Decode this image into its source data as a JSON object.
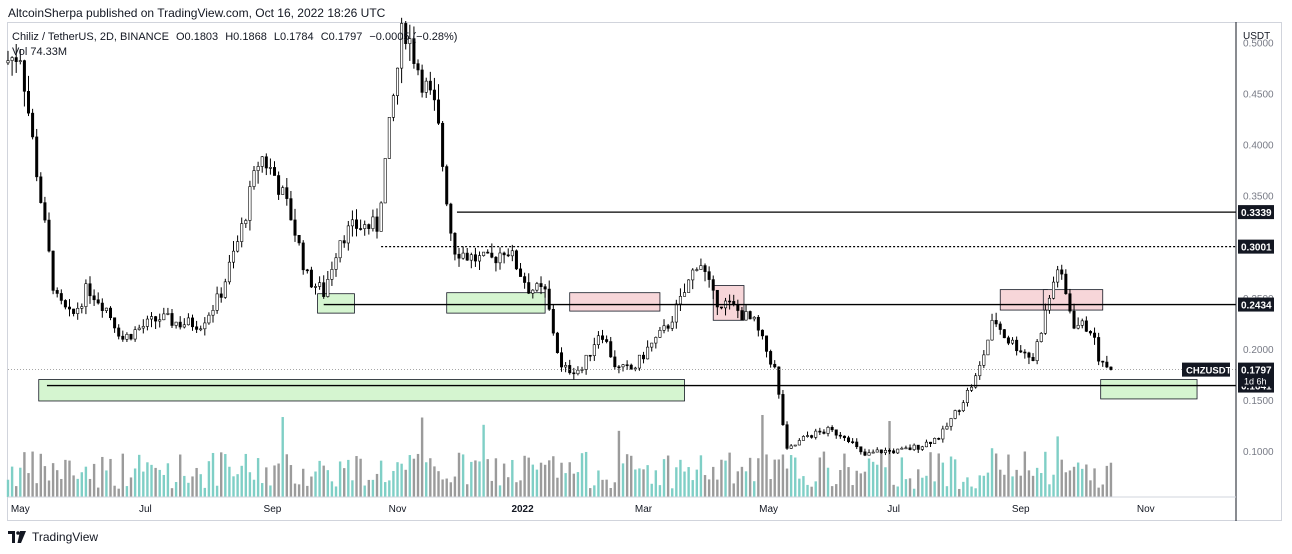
{
  "publisher_line": "AltcoinSherpa published on TradingView.com, Oct 16, 2022 18:26 UTC",
  "legend": {
    "symbol": "Chiliz / TetherUS, 2D, BINANCE",
    "open": "O0.1803",
    "high": "H0.1868",
    "low": "L0.1784",
    "close": "C0.1797",
    "change": "−0.0005 (−0.28%)",
    "volume": "Vol 74.33M"
  },
  "footer": {
    "brand": "TradingView"
  },
  "colors": {
    "up_candle": "#ffffff",
    "down_candle": "#000000",
    "candle_outline": "#000000",
    "volume_up": "#7fcfc6",
    "volume_down": "#9b9b9b",
    "support_zone": "#d5f5d0",
    "resistance_zone": "#f7d6d9",
    "level_line": "#000000",
    "price_tag_bg": "#131722"
  },
  "chart_data": {
    "type": "candlestick",
    "title": "",
    "currency": "USDT",
    "y_scale": "linear",
    "ylim": [
      0.055,
      0.52
    ],
    "y_ticks": [
      {
        "value": 0.5,
        "label": "0.5000"
      },
      {
        "value": 0.45,
        "label": "0.4500"
      },
      {
        "value": 0.4,
        "label": "0.4000"
      },
      {
        "value": 0.35,
        "label": "0.3500"
      },
      {
        "value": 0.3,
        "label": "0.3000"
      },
      {
        "value": 0.25,
        "label": "0.2500"
      },
      {
        "value": 0.2,
        "label": "0.2000"
      },
      {
        "value": 0.15,
        "label": "0.1500"
      },
      {
        "value": 0.1,
        "label": "0.1000"
      }
    ],
    "x_start": "2021-04-25",
    "x_end": "2022-12-15",
    "x_ticks": [
      {
        "date": "2021-05-01",
        "label": "May"
      },
      {
        "date": "2021-07-01",
        "label": "Jul"
      },
      {
        "date": "2021-09-01",
        "label": "Sep"
      },
      {
        "date": "2021-11-01",
        "label": "Nov"
      },
      {
        "date": "2022-01-01",
        "label": "2022"
      },
      {
        "date": "2022-03-01",
        "label": "Mar"
      },
      {
        "date": "2022-05-01",
        "label": "May"
      },
      {
        "date": "2022-07-01",
        "label": "Jul"
      },
      {
        "date": "2022-09-01",
        "label": "Sep"
      },
      {
        "date": "2022-11-01",
        "label": "Nov"
      }
    ],
    "price_path": [
      [
        "2021-04-25",
        0.48
      ],
      [
        "2021-05-03",
        0.49
      ],
      [
        "2021-05-12",
        0.36
      ],
      [
        "2021-05-20",
        0.25
      ],
      [
        "2021-05-28",
        0.23
      ],
      [
        "2021-06-05",
        0.26
      ],
      [
        "2021-06-14",
        0.24
      ],
      [
        "2021-06-22",
        0.21
      ],
      [
        "2021-06-30",
        0.22
      ],
      [
        "2021-07-10",
        0.23
      ],
      [
        "2021-07-20",
        0.225
      ],
      [
        "2021-07-30",
        0.225
      ],
      [
        "2021-08-08",
        0.25
      ],
      [
        "2021-08-18",
        0.31
      ],
      [
        "2021-08-28",
        0.39
      ],
      [
        "2021-09-04",
        0.37
      ],
      [
        "2021-09-12",
        0.33
      ],
      [
        "2021-09-20",
        0.27
      ],
      [
        "2021-09-28",
        0.255
      ],
      [
        "2021-10-06",
        0.31
      ],
      [
        "2021-10-14",
        0.32
      ],
      [
        "2021-10-24",
        0.32
      ],
      [
        "2021-10-31",
        0.43
      ],
      [
        "2021-11-06",
        0.52
      ],
      [
        "2021-11-14",
        0.47
      ],
      [
        "2021-11-22",
        0.43
      ],
      [
        "2021-11-30",
        0.3
      ],
      [
        "2021-12-08",
        0.29
      ],
      [
        "2021-12-18",
        0.285
      ],
      [
        "2021-12-26",
        0.3
      ],
      [
        "2022-01-06",
        0.26
      ],
      [
        "2022-01-14",
        0.255
      ],
      [
        "2022-01-22",
        0.18
      ],
      [
        "2022-02-01",
        0.18
      ],
      [
        "2022-02-10",
        0.22
      ],
      [
        "2022-02-18",
        0.18
      ],
      [
        "2022-02-26",
        0.18
      ],
      [
        "2022-03-05",
        0.2
      ],
      [
        "2022-03-14",
        0.22
      ],
      [
        "2022-03-22",
        0.25
      ],
      [
        "2022-03-30",
        0.29
      ],
      [
        "2022-04-06",
        0.25
      ],
      [
        "2022-04-16",
        0.24
      ],
      [
        "2022-04-26",
        0.225
      ],
      [
        "2022-05-06",
        0.18
      ],
      [
        "2022-05-12",
        0.1
      ],
      [
        "2022-05-22",
        0.115
      ],
      [
        "2022-06-01",
        0.12
      ],
      [
        "2022-06-10",
        0.115
      ],
      [
        "2022-06-18",
        0.095
      ],
      [
        "2022-06-26",
        0.1
      ],
      [
        "2022-07-06",
        0.1
      ],
      [
        "2022-07-16",
        0.105
      ],
      [
        "2022-07-26",
        0.115
      ],
      [
        "2022-08-03",
        0.14
      ],
      [
        "2022-08-13",
        0.175
      ],
      [
        "2022-08-21",
        0.23
      ],
      [
        "2022-08-27",
        0.21
      ],
      [
        "2022-09-03",
        0.2
      ],
      [
        "2022-09-09",
        0.19
      ],
      [
        "2022-09-15",
        0.235
      ],
      [
        "2022-09-21",
        0.28
      ],
      [
        "2022-09-29",
        0.225
      ],
      [
        "2022-10-07",
        0.22
      ],
      [
        "2022-10-12",
        0.185
      ],
      [
        "2022-10-16",
        0.1797
      ]
    ],
    "horizontal_levels": [
      {
        "price": 0.3339,
        "label": "0.3339",
        "style": "solid",
        "from": "2021-11-30"
      },
      {
        "price": 0.3001,
        "label": "0.3001",
        "style": "dotted",
        "from": "2021-10-24"
      },
      {
        "price": 0.2434,
        "label": "0.2434",
        "style": "solid",
        "from": "2021-09-26"
      },
      {
        "price": 0.1641,
        "label": "0.1641",
        "style": "solid",
        "from": "2021-05-14"
      }
    ],
    "current_price": {
      "price": 0.1797,
      "label": "0.1797",
      "symbol": "CHZUSDT",
      "countdown": "1d 6h"
    },
    "zones": [
      {
        "kind": "support",
        "x0": "2021-05-10",
        "x1": "2022-03-21",
        "y0": 0.17,
        "y1": 0.149
      },
      {
        "kind": "support",
        "x0": "2021-09-23",
        "x1": "2021-10-11",
        "y0": 0.254,
        "y1": 0.235
      },
      {
        "kind": "support",
        "x0": "2021-11-25",
        "x1": "2022-01-12",
        "y0": 0.255,
        "y1": 0.235
      },
      {
        "kind": "resistance",
        "x0": "2022-01-24",
        "x1": "2022-03-09",
        "y0": 0.255,
        "y1": 0.237
      },
      {
        "kind": "resistance",
        "x0": "2022-04-04",
        "x1": "2022-04-19",
        "y0": 0.262,
        "y1": 0.228
      },
      {
        "kind": "resistance",
        "x0": "2022-08-22",
        "x1": "2022-09-14",
        "y0": 0.258,
        "y1": 0.238
      },
      {
        "kind": "resistance",
        "x0": "2022-09-12",
        "x1": "2022-10-11",
        "y0": 0.258,
        "y1": 0.238
      },
      {
        "kind": "support",
        "x0": "2022-10-10",
        "x1": "2022-11-26",
        "y0": 0.17,
        "y1": 0.151
      }
    ]
  }
}
